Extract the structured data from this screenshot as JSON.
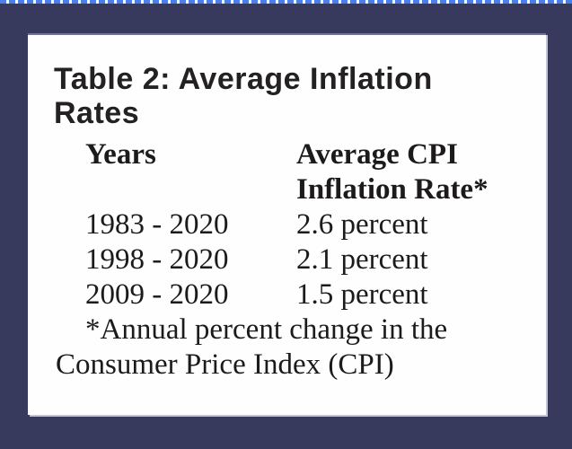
{
  "theme": {
    "background_navy": "#373a5c",
    "dash_blue": "#4a80e8",
    "panel_white": "#fefefe",
    "panel_top_edge_gray": "#6f7290",
    "panel_shadow_gray": "#c3c5d1",
    "title_text_color": "#242122",
    "body_text_color": "#1c1a1b"
  },
  "table_card": {
    "title_lines": [
      "Table 2: Average Inflation",
      "Rates"
    ],
    "header": {
      "col1": "Years",
      "col2_lines": [
        "Average CPI",
        "Inflation Rate*"
      ]
    },
    "rows": [
      {
        "years": "1983 - 2020",
        "rate": "2.6 percent"
      },
      {
        "years": "1998 - 2020",
        "rate": "2.1 percent"
      },
      {
        "years": "2009 - 2020",
        "rate": "1.5 percent"
      }
    ],
    "footnote_lines": [
      "*Annual percent change in the",
      "Consumer Price Index (CPI)"
    ]
  },
  "chart_data": {
    "type": "table",
    "title": "Table 2: Average Inflation Rates",
    "columns": [
      "Years",
      "Average CPI Inflation Rate*"
    ],
    "rows": [
      [
        "1983 - 2020",
        "2.6 percent"
      ],
      [
        "1998 - 2020",
        "2.1 percent"
      ],
      [
        "2009 - 2020",
        "1.5 percent"
      ]
    ],
    "footnote": "*Annual percent change in the Consumer Price Index (CPI)"
  }
}
